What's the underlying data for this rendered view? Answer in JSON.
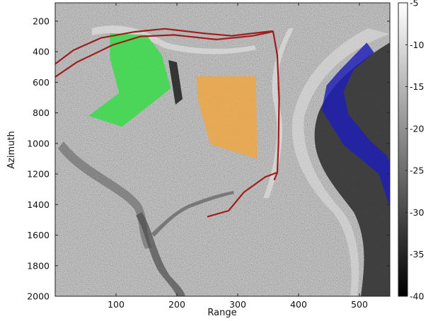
{
  "chart_data": {
    "type": "heatmap",
    "xlabel": "Range",
    "ylabel": "Azimuth",
    "xlim": [
      0,
      550
    ],
    "ylim": [
      2000,
      80
    ],
    "x_ticks": [
      100,
      200,
      300,
      400,
      500
    ],
    "y_ticks": [
      200,
      400,
      600,
      800,
      1000,
      1200,
      1400,
      1600,
      1800,
      2000
    ],
    "colorbar": {
      "colormap": "gray",
      "range": [
        -40,
        -5
      ],
      "ticks": [
        -5,
        -10,
        -15,
        -20,
        -25,
        -30,
        -35,
        -40
      ]
    },
    "overlays": [
      {
        "color": "#33dd44",
        "points": [
          [
            90,
            280
          ],
          [
            150,
            290
          ],
          [
            175,
            420
          ],
          [
            190,
            640
          ],
          [
            110,
            890
          ],
          [
            55,
            820
          ],
          [
            105,
            670
          ],
          [
            90,
            440
          ]
        ]
      },
      {
        "color": "#f0a640",
        "points": [
          [
            232,
            560
          ],
          [
            330,
            560
          ],
          [
            332,
            1100
          ],
          [
            255,
            1005
          ],
          [
            235,
            720
          ]
        ]
      },
      {
        "color": "#1f1fb8",
        "points": [
          [
            512,
            340
          ],
          [
            524,
            405
          ],
          [
            490,
            520
          ],
          [
            474,
            660
          ],
          [
            482,
            810
          ],
          [
            518,
            985
          ],
          [
            545,
            1080
          ],
          [
            560,
            1220
          ],
          [
            570,
            1460
          ],
          [
            554,
            1465
          ],
          [
            532,
            1200
          ],
          [
            474,
            1010
          ],
          [
            438,
            780
          ],
          [
            446,
            620
          ],
          [
            468,
            520
          ]
        ]
      }
    ],
    "roads": [
      [
        [
          0,
          480
        ],
        [
          30,
          390
        ],
        [
          75,
          310
        ],
        [
          130,
          270
        ],
        [
          180,
          250
        ],
        [
          245,
          280
        ],
        [
          290,
          296
        ],
        [
          345,
          270
        ],
        [
          358,
          265
        ]
      ],
      [
        [
          0,
          565
        ],
        [
          35,
          470
        ],
        [
          95,
          355
        ],
        [
          140,
          300
        ],
        [
          195,
          290
        ],
        [
          265,
          320
        ],
        [
          325,
          296
        ],
        [
          358,
          268
        ]
      ],
      [
        [
          250,
          1480
        ],
        [
          285,
          1440
        ],
        [
          310,
          1320
        ],
        [
          345,
          1220
        ],
        [
          365,
          1190
        ]
      ],
      [
        [
          358,
          265
        ],
        [
          365,
          420
        ],
        [
          368,
          700
        ],
        [
          367,
          1000
        ],
        [
          365,
          1190
        ],
        [
          360,
          1240
        ]
      ]
    ]
  }
}
